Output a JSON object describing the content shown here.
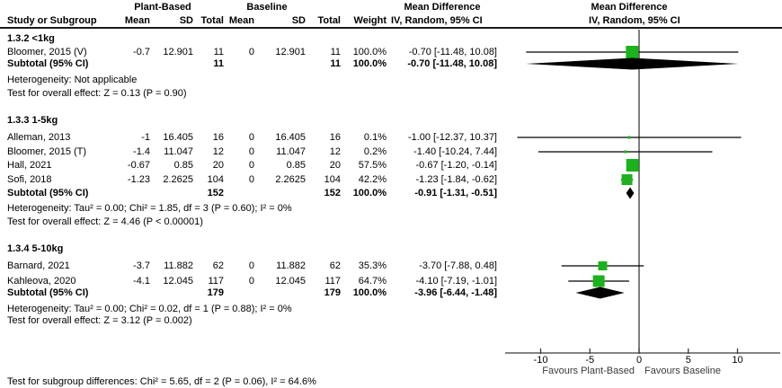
{
  "header": {
    "group1": "Plant-Based",
    "group2": "Baseline",
    "study_col": "Study or Subgroup",
    "mean": "Mean",
    "sd": "SD",
    "total": "Total",
    "weight": "Weight",
    "md_title": "Mean Difference",
    "md_sub": "IV, Random, 95% CI"
  },
  "colors": {
    "marker_green": "#1cb21c",
    "line_black": "#000000",
    "axis_gray": "#3a3a3a"
  },
  "chart_data": {
    "type": "scatter",
    "title": "Mean Difference IV, Random, 95% CI forest plot",
    "xlim": [
      -13.6,
      14.3
    ],
    "ticks": [
      -10,
      -5,
      0,
      5,
      10
    ],
    "xlabel_left": "Favours Plant-Based",
    "xlabel_right": "Favours Baseline",
    "grid": false,
    "subgroups": [
      {
        "label": "1.3.2 <1kg",
        "studies": [
          {
            "name": "Bloomer, 2015 (V)",
            "mean1": "-0.7",
            "sd1": "12.901",
            "total1": "11",
            "mean2": "0",
            "sd2": "12.901",
            "total2": "11",
            "weight": "100.0%",
            "md": "-0.70 [-11.48, 10.08]",
            "est": -0.7,
            "lo": -11.48,
            "hi": 10.08,
            "size": 14
          }
        ],
        "subtotal": {
          "name": "Subtotal (95% CI)",
          "total1": "11",
          "total2": "11",
          "weight": "100.0%",
          "md": "-0.70 [-11.48, 10.08]",
          "est": -0.7,
          "lo": -11.48,
          "hi": 10.08
        },
        "heterogeneity": "Heterogeneity: Not applicable",
        "overall": "Test for overall effect: Z = 0.13 (P = 0.90)"
      },
      {
        "label": "1.3.3 1-5kg",
        "studies": [
          {
            "name": "Alleman, 2013",
            "mean1": "-1",
            "sd1": "16.405",
            "total1": "16",
            "mean2": "0",
            "sd2": "16.405",
            "total2": "16",
            "weight": "0.1%",
            "md": "-1.00 [-12.37, 10.37]",
            "est": -1.0,
            "lo": -12.37,
            "hi": 10.37,
            "size": 3
          },
          {
            "name": "Bloomer, 2015 (T)",
            "mean1": "-1.4",
            "sd1": "11.047",
            "total1": "12",
            "mean2": "0",
            "sd2": "11.047",
            "total2": "12",
            "weight": "0.2%",
            "md": "-1.40 [-10.24, 7.44]",
            "est": -1.4,
            "lo": -10.24,
            "hi": 7.44,
            "size": 3
          },
          {
            "name": "Hall, 2021",
            "mean1": "-0.67",
            "sd1": "0.85",
            "total1": "20",
            "mean2": "0",
            "sd2": "0.85",
            "total2": "20",
            "weight": "57.5%",
            "md": "-0.67 [-1.20, -0.14]",
            "est": -0.67,
            "lo": -1.2,
            "hi": -0.14,
            "size": 14
          },
          {
            "name": "Sofi, 2018",
            "mean1": "-1.23",
            "sd1": "2.2625",
            "total1": "104",
            "mean2": "0",
            "sd2": "2.2625",
            "total2": "104",
            "weight": "42.2%",
            "md": "-1.23 [-1.84, -0.62]",
            "est": -1.23,
            "lo": -1.84,
            "hi": -0.62,
            "size": 12
          }
        ],
        "subtotal": {
          "name": "Subtotal (95% CI)",
          "total1": "152",
          "total2": "152",
          "weight": "100.0%",
          "md": "-0.91 [-1.31, -0.51]",
          "est": -0.91,
          "lo": -1.31,
          "hi": -0.51
        },
        "heterogeneity": "Heterogeneity: Tau² = 0.00; Chi² = 1.85, df = 3 (P = 0.60); I² = 0%",
        "overall": "Test for overall effect: Z = 4.46 (P < 0.00001)"
      },
      {
        "label": "1.3.4 5-10kg",
        "studies": [
          {
            "name": "Barnard, 2021",
            "mean1": "-3.7",
            "sd1": "11.882",
            "total1": "62",
            "mean2": "0",
            "sd2": "11.882",
            "total2": "62",
            "weight": "35.3%",
            "md": "-3.70 [-7.88, 0.48]",
            "est": -3.7,
            "lo": -7.88,
            "hi": 0.48,
            "size": 10
          },
          {
            "name": "Kahleova, 2020",
            "mean1": "-4.1",
            "sd1": "12.045",
            "total1": "117",
            "mean2": "0",
            "sd2": "12.045",
            "total2": "117",
            "weight": "64.7%",
            "md": "-4.10 [-7.19, -1.01]",
            "est": -4.1,
            "lo": -7.19,
            "hi": -1.01,
            "size": 13
          }
        ],
        "subtotal": {
          "name": "Subtotal (95% CI)",
          "total1": "179",
          "total2": "179",
          "weight": "100.0%",
          "md": "-3.96 [-6.44, -1.48]",
          "est": -3.96,
          "lo": -6.44,
          "hi": -1.48
        },
        "heterogeneity": "Heterogeneity: Tau² = 0.00; Chi² = 0.02, df = 1 (P = 0.88); I² = 0%",
        "overall": "Test for overall effect: Z = 3.12 (P = 0.002)"
      }
    ]
  },
  "footer_note": "Test for subgroup differences: Chi² = 5.65, df = 2 (P = 0.06), I² = 64.6%"
}
